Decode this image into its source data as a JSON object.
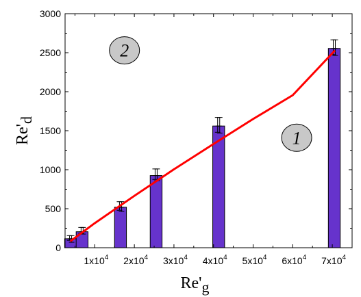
{
  "chart_data": {
    "type": "bar",
    "title": "",
    "xlabel": "Re'g",
    "ylabel": "Re'd",
    "xlim": [
      2500,
      75000
    ],
    "ylim": [
      0,
      3000
    ],
    "x_ticks": [
      10000,
      20000,
      30000,
      40000,
      50000,
      60000,
      70000
    ],
    "x_tick_labels": [
      {
        "base": "1x10",
        "exp": "4"
      },
      {
        "base": "2x10",
        "exp": "4"
      },
      {
        "base": "3x10",
        "exp": "4"
      },
      {
        "base": "4x10",
        "exp": "4"
      },
      {
        "base": "5x10",
        "exp": "4"
      },
      {
        "base": "6x10",
        "exp": "4"
      },
      {
        "base": "7x10",
        "exp": "4"
      }
    ],
    "y_ticks": [
      0,
      500,
      1000,
      1500,
      2000,
      2500,
      3000
    ],
    "y_tick_labels": [
      "0",
      "500",
      "1000",
      "1500",
      "2000",
      "2500",
      "3000"
    ],
    "bars": [
      {
        "x": 3900,
        "value": 115,
        "err": [
          [
            40,
            20
          ],
          [
            40,
            45
          ]
        ]
      },
      {
        "x": 6800,
        "value": 205,
        "err": [
          [
            55,
            20
          ],
          [
            55,
            30
          ]
        ]
      },
      {
        "x": 16500,
        "value": 520,
        "err": [
          [
            70,
            40
          ],
          [
            70,
            55
          ]
        ]
      },
      {
        "x": 25500,
        "value": 925,
        "err": [
          [
            85,
            50
          ],
          [
            85,
            65
          ]
        ]
      },
      {
        "x": 41300,
        "value": 1560,
        "err": [
          [
            110,
            80
          ],
          [
            110,
            90
          ]
        ]
      },
      {
        "x": 70500,
        "value": 2555,
        "err": [
          [
            110,
            80
          ],
          [
            110,
            90
          ]
        ]
      }
    ],
    "bar_width": 3000,
    "bar_color": "#6633cc",
    "fit_line": {
      "color": "#ff0000",
      "x": [
        4000,
        10000,
        20000,
        30000,
        40000,
        50000,
        60000,
        70500
      ],
      "y": [
        90,
        315,
        665,
        1005,
        1330,
        1650,
        1955,
        2520
      ]
    },
    "annotations": [
      {
        "text": "2",
        "x": 17500,
        "y": 2530
      },
      {
        "text": "1",
        "x": 61000,
        "y": 1410
      }
    ],
    "grid": false
  }
}
